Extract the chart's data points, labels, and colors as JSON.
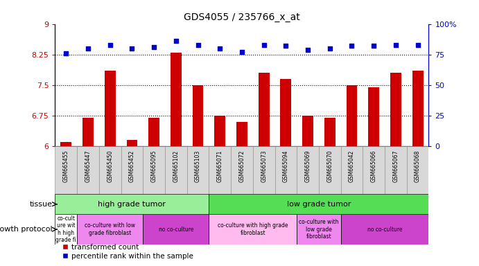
{
  "title": "GDS4055 / 235766_x_at",
  "samples": [
    "GSM665455",
    "GSM665447",
    "GSM665450",
    "GSM665452",
    "GSM665095",
    "GSM665102",
    "GSM665103",
    "GSM665071",
    "GSM665072",
    "GSM665073",
    "GSM665094",
    "GSM665069",
    "GSM665070",
    "GSM665042",
    "GSM665066",
    "GSM665067",
    "GSM665068"
  ],
  "transformed_count": [
    6.1,
    6.7,
    7.85,
    6.15,
    6.7,
    8.3,
    7.5,
    6.75,
    6.6,
    7.8,
    7.65,
    6.75,
    6.7,
    7.5,
    7.45,
    7.8,
    7.85
  ],
  "percentile_rank": [
    76,
    80,
    83,
    80,
    81,
    86,
    83,
    80,
    77,
    83,
    82,
    79,
    80,
    82,
    82,
    83,
    83
  ],
  "ylim_left": [
    6,
    9
  ],
  "ylim_right": [
    0,
    100
  ],
  "yticks_left": [
    6,
    6.75,
    7.5,
    8.25,
    9
  ],
  "yticks_right": [
    0,
    25,
    50,
    75,
    100
  ],
  "hlines": [
    6.75,
    7.5,
    8.25
  ],
  "bar_color": "#cc0000",
  "scatter_color": "#0000cc",
  "tissue_groups": [
    {
      "label": "high grade tumor",
      "start": 0,
      "end": 7,
      "color": "#99ee99"
    },
    {
      "label": "low grade tumor",
      "start": 7,
      "end": 17,
      "color": "#55dd55"
    }
  ],
  "growth_protocol_groups": [
    {
      "label": "co-cult\nure wit\nh high\ngrade fi",
      "start": 0,
      "end": 1,
      "color": "#ffffff"
    },
    {
      "label": "co-culture with low\ngrade fibroblast",
      "start": 1,
      "end": 4,
      "color": "#ee88ee"
    },
    {
      "label": "no co-culture",
      "start": 4,
      "end": 7,
      "color": "#cc44cc"
    },
    {
      "label": "co-culture with high grade\nfibroblast",
      "start": 7,
      "end": 11,
      "color": "#ffbbee"
    },
    {
      "label": "co-culture with\nlow grade\nfibroblast",
      "start": 11,
      "end": 13,
      "color": "#ee88ee"
    },
    {
      "label": "no co-culture",
      "start": 13,
      "end": 17,
      "color": "#cc44cc"
    }
  ],
  "tissue_label": "tissue",
  "growth_protocol_label": "growth protocol",
  "legend_bar_label": "transformed count",
  "legend_scatter_label": "percentile rank within the sample",
  "tick_label_color_left": "#cc0000",
  "tick_label_color_right": "#0000cc"
}
